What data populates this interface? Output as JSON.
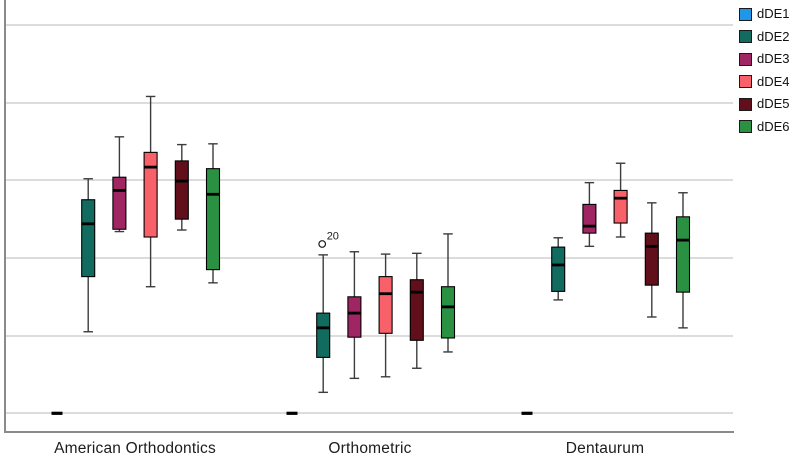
{
  "chart_data": {
    "type": "boxplot",
    "title": "",
    "xlabel": "",
    "ylabel": "",
    "y_axis_labels_visible": false,
    "ylim": [
      0,
      5.55
    ],
    "grid": true,
    "gridline_values": [
      0,
      1,
      2,
      3,
      4,
      5
    ],
    "legend_position": "top-right",
    "categories": [
      "American Orthodontics",
      "Orthometric",
      "Dentaurum"
    ],
    "note_units": "values estimated in gridline units; bottom gridline = 0, one unit per gridline",
    "series": [
      {
        "name": "dDE1",
        "color": "#1F96E8",
        "boxes": [
          {
            "min": 0,
            "q1": 0,
            "median": 0,
            "q3": 0,
            "max": 0
          },
          {
            "min": 0,
            "q1": 0,
            "median": 0,
            "q3": 0,
            "max": 0
          },
          {
            "min": 0,
            "q1": 0,
            "median": 0,
            "q3": 0,
            "max": 0
          }
        ]
      },
      {
        "name": "dDE2",
        "color": "#116B5F",
        "boxes": [
          {
            "min": 1.05,
            "q1": 1.76,
            "median": 2.44,
            "q3": 2.75,
            "max": 3.02
          },
          {
            "min": 0.27,
            "q1": 0.72,
            "median": 1.1,
            "q3": 1.29,
            "max": 2.04
          },
          {
            "min": 1.46,
            "q1": 1.57,
            "median": 1.91,
            "q3": 2.14,
            "max": 2.26
          }
        ],
        "outliers": [
          {
            "category_index": 1,
            "value": 2.18,
            "label": "20"
          }
        ]
      },
      {
        "name": "dDE3",
        "color": "#A02663",
        "boxes": [
          {
            "min": 2.34,
            "q1": 2.37,
            "median": 2.87,
            "q3": 3.04,
            "max": 3.56
          },
          {
            "min": 0.45,
            "q1": 0.98,
            "median": 1.29,
            "q3": 1.5,
            "max": 2.08
          },
          {
            "min": 2.15,
            "q1": 2.32,
            "median": 2.41,
            "q3": 2.69,
            "max": 2.97
          }
        ]
      },
      {
        "name": "dDE4",
        "color": "#F9616A",
        "boxes": [
          {
            "min": 1.63,
            "q1": 2.27,
            "median": 3.17,
            "q3": 3.36,
            "max": 4.08
          },
          {
            "min": 0.47,
            "q1": 1.03,
            "median": 1.54,
            "q3": 1.76,
            "max": 2.05
          },
          {
            "min": 2.27,
            "q1": 2.45,
            "median": 2.77,
            "q3": 2.87,
            "max": 3.22
          }
        ]
      },
      {
        "name": "dDE5",
        "color": "#600F1B",
        "boxes": [
          {
            "min": 2.36,
            "q1": 2.5,
            "median": 2.99,
            "q3": 3.25,
            "max": 3.46
          },
          {
            "min": 0.58,
            "q1": 0.94,
            "median": 1.56,
            "q3": 1.72,
            "max": 2.06
          },
          {
            "min": 1.24,
            "q1": 1.65,
            "median": 2.15,
            "q3": 2.32,
            "max": 2.71
          }
        ]
      },
      {
        "name": "dDE6",
        "color": "#2B9142",
        "boxes": [
          {
            "min": 1.68,
            "q1": 1.85,
            "median": 2.82,
            "q3": 3.15,
            "max": 3.47
          },
          {
            "min": 0.79,
            "q1": 0.97,
            "median": 1.37,
            "q3": 1.63,
            "max": 2.31
          },
          {
            "min": 1.1,
            "q1": 1.56,
            "median": 2.23,
            "q3": 2.53,
            "max": 2.84
          }
        ]
      }
    ]
  },
  "legend": {
    "items": [
      "dDE1",
      "dDE2",
      "dDE3",
      "dDE4",
      "dDE5",
      "dDE6"
    ]
  },
  "colors": {
    "gridline": "#dcdcdc",
    "axis": "#8a8a8a",
    "whisker": "#3c3c3c",
    "box_border": "#000000",
    "median": "#000000",
    "text": "#1c1c1c",
    "background": "#ffffff"
  }
}
